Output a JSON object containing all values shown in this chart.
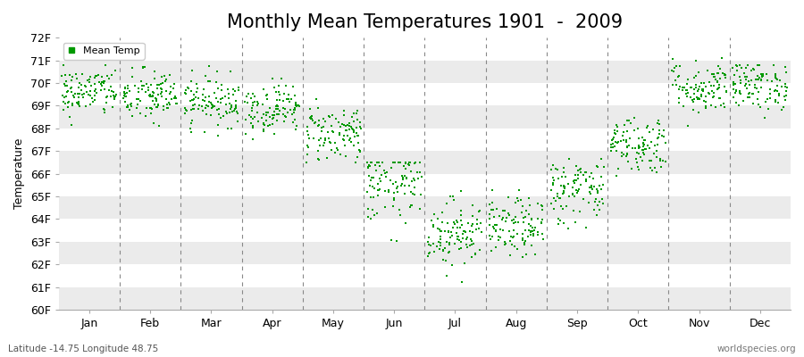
{
  "title": "Monthly Mean Temperatures 1901  -  2009",
  "ylabel": "Temperature",
  "xlabel_labels": [
    "Jan",
    "Feb",
    "Mar",
    "Apr",
    "May",
    "Jun",
    "Jul",
    "Aug",
    "Sep",
    "Oct",
    "Nov",
    "Dec"
  ],
  "ylim": [
    60,
    72
  ],
  "ytick_labels": [
    "60F",
    "61F",
    "62F",
    "63F",
    "64F",
    "65F",
    "66F",
    "67F",
    "68F",
    "69F",
    "70F",
    "71F",
    "72F"
  ],
  "ytick_values": [
    60,
    61,
    62,
    63,
    64,
    65,
    66,
    67,
    68,
    69,
    70,
    71,
    72
  ],
  "dot_color": "#009900",
  "background_color": "#FFFFFF",
  "band_color_light": "#EBEBEB",
  "band_color_white": "#FFFFFF",
  "legend_label": "Mean Temp",
  "footer_left": "Latitude -14.75 Longitude 48.75",
  "footer_right": "worldspecies.org",
  "title_fontsize": 15,
  "axis_label_fontsize": 9,
  "tick_fontsize": 9,
  "n_years": 109,
  "monthly_mean": [
    69.6,
    69.4,
    69.2,
    68.9,
    67.8,
    65.5,
    63.4,
    63.6,
    65.3,
    67.3,
    69.8,
    69.9
  ],
  "monthly_std": [
    0.55,
    0.6,
    0.55,
    0.55,
    0.65,
    0.85,
    0.75,
    0.65,
    0.75,
    0.65,
    0.6,
    0.55
  ],
  "monthly_min": [
    67.5,
    67.0,
    67.5,
    67.5,
    66.5,
    61.0,
    61.0,
    61.5,
    63.5,
    65.5,
    67.5,
    68.0
  ],
  "monthly_max": [
    70.8,
    71.2,
    70.8,
    70.2,
    69.3,
    66.5,
    65.5,
    65.5,
    68.0,
    69.5,
    71.8,
    70.8
  ],
  "dashed_line_color": "#888888",
  "spine_color": "#AAAAAA",
  "marker": "s",
  "marker_size": 4
}
